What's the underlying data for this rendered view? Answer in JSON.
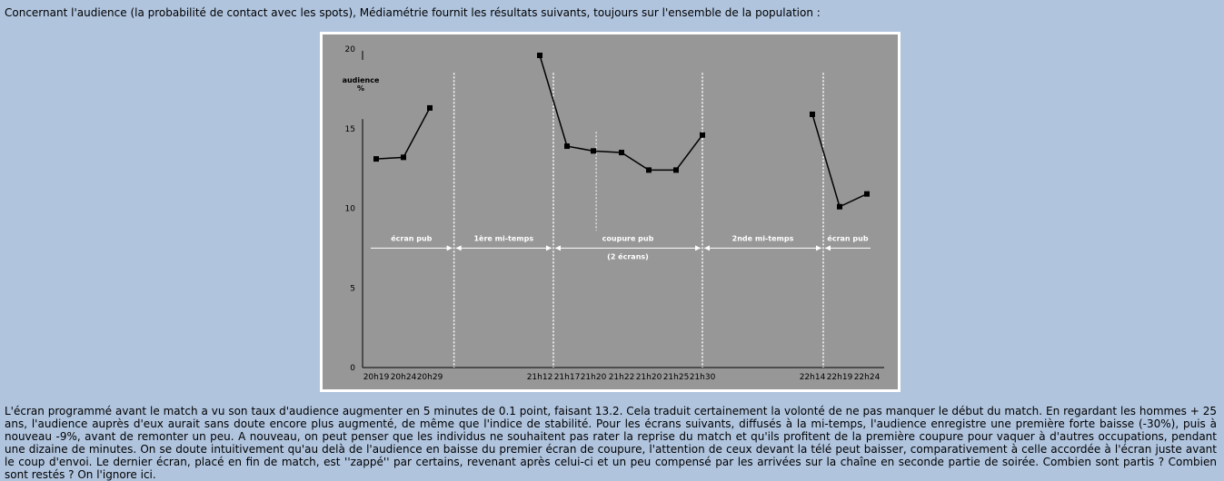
{
  "intro_text": "Concernant l'audience (la probabilité de contact avec les spots), Médiamétrie fournit les résultats suivants, toujours sur l'ensemble de la population :",
  "chart_data": {
    "type": "line",
    "ylabel_line1": "audience",
    "ylabel_line2": "%",
    "ylim": [
      0,
      20
    ],
    "yticks": [
      0,
      5,
      10,
      15,
      20
    ],
    "x_labels": [
      "20h19",
      "20h24",
      "20h29",
      "21h12",
      "21h17",
      "21h20",
      "21h22",
      "21h20",
      "21h25",
      "21h30",
      "22h14",
      "22h19",
      "22h24"
    ],
    "series": [
      {
        "x_index": [
          0,
          1,
          2
        ],
        "values": [
          13.1,
          13.2,
          16.3
        ]
      },
      {
        "x_index": [
          3,
          4,
          5,
          6,
          7,
          8,
          9
        ],
        "values": [
          19.6,
          13.9,
          13.6,
          13.5,
          12.4,
          12.4,
          14.6
        ]
      },
      {
        "x_index": [
          10,
          11,
          12
        ],
        "values": [
          15.9,
          10.1,
          10.9
        ]
      }
    ],
    "separators": [
      2.22,
      3.5,
      9.0,
      10.4
    ],
    "short_separator": 5.1,
    "segments": [
      {
        "label": "écran pub",
        "sublabel": ""
      },
      {
        "label": "1ère mi-temps",
        "sublabel": ""
      },
      {
        "label": "coupure pub",
        "sublabel": "(2 écrans)"
      },
      {
        "label": "2nde mi-temps",
        "sublabel": ""
      },
      {
        "label": "écran pub",
        "sublabel": ""
      }
    ],
    "colors": {
      "background": "#979797",
      "line": "#000000",
      "guides": "#ffffff"
    }
  },
  "body_text": "L'écran programmé avant le match a vu son taux d'audience augmenter en 5 minutes de 0.1 point, faisant 13.2. Cela traduit certainement la volonté de ne pas manquer le début du match. En regardant les hommes + 25 ans, l'audience auprès d'eux aurait sans doute encore plus augmenté, de même que l'indice de stabilité. Pour les écrans suivants, diffusés à la mi-temps, l'audience enregistre une première forte baisse (-30%), puis à nouveau -9%, avant de remonter un peu. A nouveau, on peut penser que les individus ne souhaitent pas rater la reprise du match et qu'ils profitent de la première coupure pour vaquer à d'autres occupations, pendant une dizaine de minutes. On se doute intuitivement qu'au delà de l'audience en baisse du premier écran de coupure, l'attention de ceux devant la télé peut baisser, comparativement à celle accordée à l'écran juste avant le coup d'envoi. Le dernier écran, placé en fin de match, est ''zappé'' par certains, revenant après celui-ci et un peu compensé par les arrivées sur la chaîne en seconde partie de soirée. Combien sont partis ? Combien sont restés ? On l'ignore ici."
}
